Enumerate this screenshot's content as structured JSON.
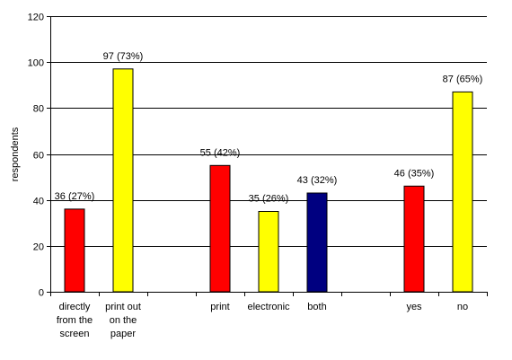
{
  "chart_data": {
    "type": "bar",
    "ylabel": "respondents",
    "ylim": [
      0,
      120
    ],
    "yticks": [
      0,
      20,
      40,
      60,
      80,
      100,
      120
    ],
    "grid": true,
    "legend": "none",
    "categories": [
      [
        "directly",
        "from the",
        "screen"
      ],
      [
        "print out",
        "on the",
        "paper"
      ],
      [],
      [
        "print"
      ],
      [
        "electronic"
      ],
      [
        "both"
      ],
      [],
      [
        "yes"
      ],
      [
        "no"
      ]
    ],
    "values": [
      36,
      97,
      null,
      55,
      35,
      43,
      null,
      46,
      87
    ],
    "data_labels": [
      "36 (27%)",
      "97 (73%)",
      "",
      "55 (42%)",
      "35 (26%)",
      "43 (32%)",
      "",
      "46 (35%)",
      "87 (65%)"
    ],
    "colors": [
      "#ff0000",
      "#ffff00",
      "",
      "#ff0000",
      "#ffff00",
      "#000080",
      "",
      "#ff0000",
      "#ffff00"
    ]
  }
}
